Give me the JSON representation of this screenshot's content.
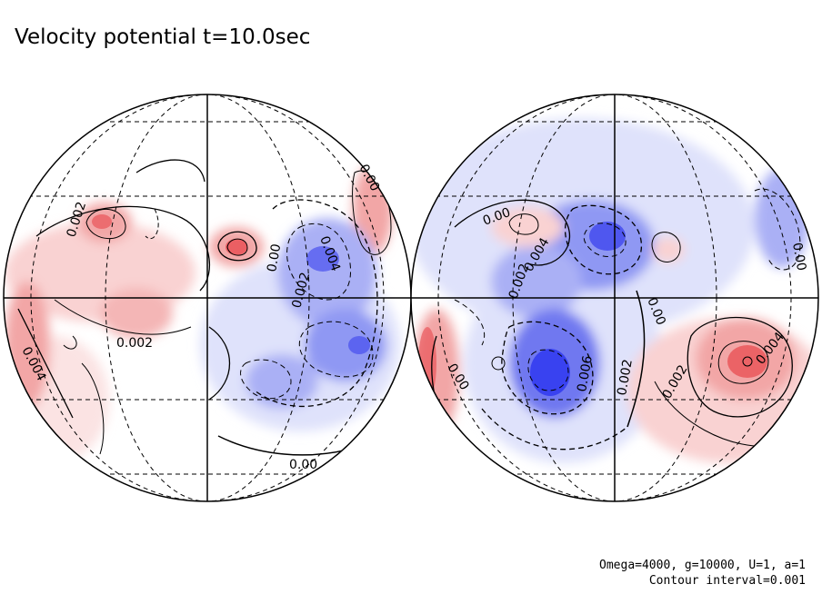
{
  "title": "Velocity potential t=10.0sec",
  "footer": {
    "params": "Omega=4000, g=10000, U=1, a=1",
    "interval": "Contour interval=0.001"
  },
  "colors": {
    "positive": "#e8474c",
    "positive_light": "#f9d2d2",
    "negative": "#2c34f0",
    "negative_light": "#dfe2fb",
    "line": "#000000"
  },
  "left_hemisphere": {
    "labels": [
      "0.002",
      "0.00",
      "0.002",
      "0.004",
      "0.002",
      "0.004",
      "0.00",
      "0.00"
    ]
  },
  "right_hemisphere": {
    "labels": [
      "0.00",
      "0.002",
      "0.004",
      "0.006",
      "0.002",
      "0.00",
      "0.002",
      "0.004",
      "0.00",
      "0.00"
    ]
  }
}
